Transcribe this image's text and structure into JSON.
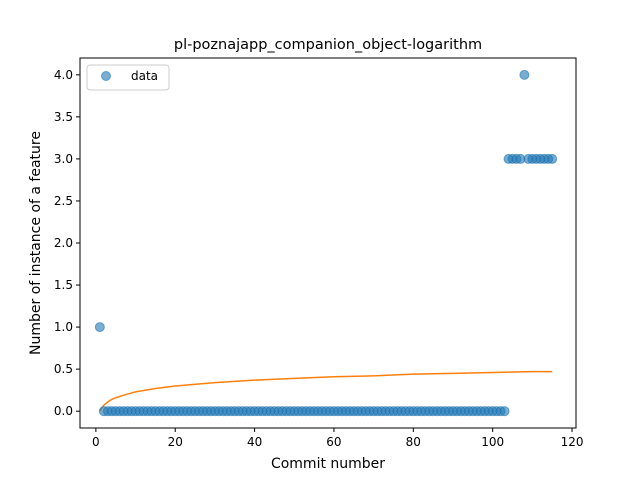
{
  "chart_data": {
    "type": "scatter",
    "title": "pl-poznajapp_companion_object-logarithm",
    "xlabel": "Commit number",
    "ylabel": "Number of instance of a feature",
    "xlim": [
      -4,
      121
    ],
    "ylim": [
      -0.2,
      4.2
    ],
    "xticks": [
      0,
      20,
      40,
      60,
      80,
      100,
      120
    ],
    "yticks": [
      0.0,
      0.5,
      1.0,
      1.5,
      2.0,
      2.5,
      3.0,
      3.5,
      4.0
    ],
    "xtick_labels": [
      "0",
      "20",
      "40",
      "60",
      "80",
      "100",
      "120"
    ],
    "ytick_labels": [
      "0.0",
      "0.5",
      "1.0",
      "1.5",
      "2.0",
      "2.5",
      "3.0",
      "3.5",
      "4.0"
    ],
    "grid": false,
    "legend": {
      "position": "top-left",
      "entries": [
        "data"
      ]
    },
    "colors": {
      "data": "#1f77b4",
      "fit": "#ff7f0e"
    },
    "series": [
      {
        "name": "data",
        "kind": "scatter",
        "x": [
          1,
          2,
          3,
          4,
          5,
          6,
          7,
          8,
          9,
          10,
          11,
          12,
          13,
          14,
          15,
          16,
          17,
          18,
          19,
          20,
          21,
          22,
          23,
          24,
          25,
          26,
          27,
          28,
          29,
          30,
          31,
          32,
          33,
          34,
          35,
          36,
          37,
          38,
          39,
          40,
          41,
          42,
          43,
          44,
          45,
          46,
          47,
          48,
          49,
          50,
          51,
          52,
          53,
          54,
          55,
          56,
          57,
          58,
          59,
          60,
          61,
          62,
          63,
          64,
          65,
          66,
          67,
          68,
          69,
          70,
          71,
          72,
          73,
          74,
          75,
          76,
          77,
          78,
          79,
          80,
          81,
          82,
          83,
          84,
          85,
          86,
          87,
          88,
          89,
          90,
          91,
          92,
          93,
          94,
          95,
          96,
          97,
          98,
          99,
          100,
          101,
          102,
          103,
          104,
          105,
          106,
          107,
          108,
          109,
          110,
          111,
          112,
          113,
          114,
          115
        ],
        "y": [
          1,
          0,
          0,
          0,
          0,
          0,
          0,
          0,
          0,
          0,
          0,
          0,
          0,
          0,
          0,
          0,
          0,
          0,
          0,
          0,
          0,
          0,
          0,
          0,
          0,
          0,
          0,
          0,
          0,
          0,
          0,
          0,
          0,
          0,
          0,
          0,
          0,
          0,
          0,
          0,
          0,
          0,
          0,
          0,
          0,
          0,
          0,
          0,
          0,
          0,
          0,
          0,
          0,
          0,
          0,
          0,
          0,
          0,
          0,
          0,
          0,
          0,
          0,
          0,
          0,
          0,
          0,
          0,
          0,
          0,
          0,
          0,
          0,
          0,
          0,
          0,
          0,
          0,
          0,
          0,
          0,
          0,
          0,
          0,
          0,
          0,
          0,
          0,
          0,
          0,
          0,
          0,
          0,
          0,
          0,
          0,
          0,
          0,
          0,
          0,
          0,
          0,
          0,
          3,
          3,
          3,
          3,
          4,
          3,
          3,
          3,
          3,
          3,
          3,
          3
        ]
      },
      {
        "kind": "line",
        "x": [
          1,
          1.5,
          2,
          3,
          4,
          5,
          7,
          10,
          15,
          20,
          30,
          40,
          50,
          60,
          70,
          80,
          90,
          100,
          110,
          115
        ],
        "y": [
          0.0,
          0.04,
          0.07,
          0.11,
          0.14,
          0.16,
          0.19,
          0.23,
          0.27,
          0.3,
          0.34,
          0.37,
          0.39,
          0.41,
          0.42,
          0.44,
          0.45,
          0.46,
          0.47,
          0.47
        ]
      }
    ]
  }
}
